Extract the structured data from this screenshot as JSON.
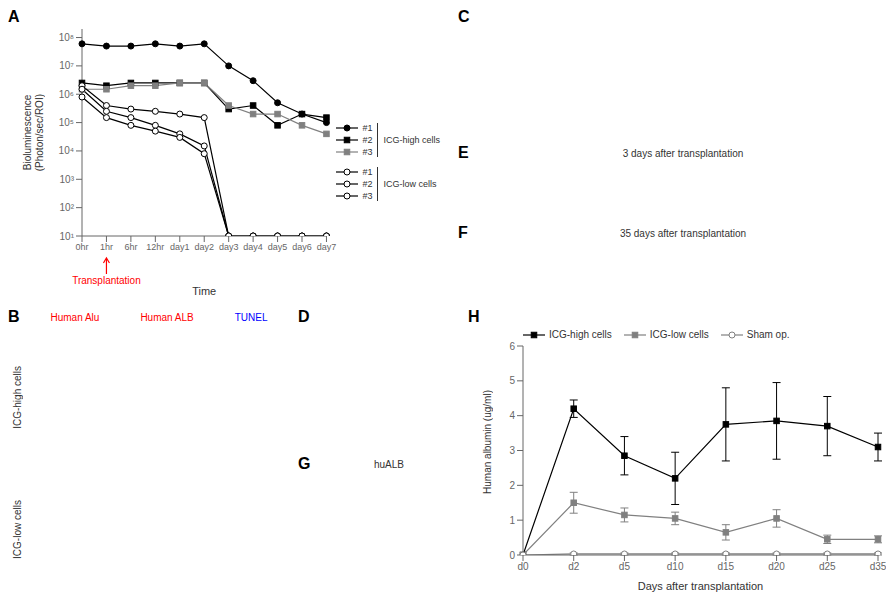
{
  "chart_data": [
    {
      "type": "line",
      "title": "A",
      "xlabel": "Time",
      "ylabel": "Bioluminescence\n(Photon/sec/ROI)",
      "categories": [
        "0hr",
        "1hr",
        "6hr",
        "12hr",
        "day1",
        "day2",
        "day3",
        "day4",
        "day5",
        "day6",
        "day7"
      ],
      "log": "y",
      "ylim": [
        10,
        200000000
      ],
      "yticks": [
        {
          "value": 10,
          "label": "10¹"
        },
        {
          "value": 100,
          "label": "10²"
        },
        {
          "value": 1000,
          "label": "10³"
        },
        {
          "value": 10000,
          "label": "10⁴"
        },
        {
          "value": 100000,
          "label": "10⁵"
        },
        {
          "value": 1000000,
          "label": "10⁶"
        },
        {
          "value": 10000000,
          "label": "10⁷"
        },
        {
          "value": 100000000,
          "label": "10⁸"
        }
      ],
      "grid": false,
      "legend": "right",
      "series": [
        {
          "name": "#1",
          "color": "black",
          "marker": "circle",
          "values": [
            60000000,
            50000000,
            50000000,
            60000000,
            50000000,
            60000000,
            10000000,
            3000000,
            500000,
            200000,
            100000
          ]
        },
        {
          "name": "#2",
          "color": "black",
          "marker": "square",
          "values": [
            2500000,
            2000000,
            2500000,
            2500000,
            2500000,
            2500000,
            300000,
            400000,
            80000,
            200000,
            150000
          ]
        },
        {
          "name": "#3",
          "color": "gray",
          "marker": "square",
          "values": [
            1500000,
            1500000,
            2000000,
            2000000,
            2500000,
            2500000,
            400000,
            200000,
            200000,
            80000,
            40000
          ]
        },
        {
          "name": "#1",
          "color": "black",
          "marker": "open_circle",
          "values": [
            2000000,
            400000,
            300000,
            250000,
            200000,
            150000,
            10,
            10,
            10,
            10,
            10
          ]
        },
        {
          "name": "#2",
          "color": "black",
          "marker": "open_circle",
          "values": [
            1500000,
            250000,
            150000,
            80000,
            40000,
            15000,
            10,
            10,
            10,
            10,
            10
          ]
        },
        {
          "name": "#3",
          "color": "black",
          "marker": "open_circle",
          "values": [
            800000,
            150000,
            80000,
            50000,
            30000,
            8000,
            10,
            10,
            10,
            10,
            10
          ]
        }
      ],
      "annotations": [
        {
          "text": "ICG-high cells"
        },
        {
          "text": "ICG-low cells"
        },
        {
          "text": "Transplantation",
          "x": "1hr",
          "color": "red"
        }
      ]
    },
    {
      "type": "image",
      "title": "B",
      "annotations": [
        {
          "text": "Human Alu",
          "color": "red"
        },
        {
          "text": "Human ALB",
          "color": "red"
        },
        {
          "text": "TUNEL",
          "color": "blue"
        },
        {
          "text": "ICG-high cells"
        },
        {
          "text": "ICG-low cells"
        }
      ]
    },
    {
      "type": "image",
      "title": "C"
    },
    {
      "type": "image",
      "title": "D"
    },
    {
      "type": "image",
      "title": "E",
      "annotations": [
        {
          "text": "3 days after transplantation"
        }
      ]
    },
    {
      "type": "image",
      "title": "F",
      "annotations": [
        {
          "text": "35 days after transplantation"
        }
      ]
    },
    {
      "type": "image",
      "title": "G",
      "annotations": [
        {
          "text": "huALB"
        }
      ]
    },
    {
      "type": "line",
      "title": "H",
      "xlabel": "Days after transplantation",
      "ylabel": "Human albumin (ug/ml)",
      "categories": [
        "d0",
        "d2",
        "d5",
        "d10",
        "d15",
        "d20",
        "d25",
        "d35"
      ],
      "ylim": [
        0,
        6
      ],
      "yticks": [
        0,
        1,
        2,
        3,
        4,
        5,
        6
      ],
      "grid": false,
      "legend": "upper left",
      "series": [
        {
          "name": "ICG-high cells",
          "color": "black",
          "marker": "square",
          "values": [
            0,
            4.2,
            2.85,
            2.2,
            3.75,
            3.85,
            3.7,
            3.1
          ],
          "errors": [
            0,
            0.25,
            0.55,
            0.75,
            1.05,
            1.1,
            0.85,
            0.4
          ]
        },
        {
          "name": "ICG-low cells",
          "color": "gray",
          "marker": "square",
          "values": [
            0,
            1.5,
            1.15,
            1.05,
            0.65,
            1.05,
            0.45,
            0.45
          ],
          "errors": [
            0,
            0.3,
            0.2,
            0.18,
            0.22,
            0.25,
            0.12,
            0.1
          ]
        },
        {
          "name": "Sham op.",
          "color": "gray",
          "marker": "open_circle",
          "values": [
            0,
            0.03,
            0.03,
            0.03,
            0.03,
            0.03,
            0.03,
            0.03
          ],
          "errors": [
            0,
            0.03,
            0.03,
            0.03,
            0.03,
            0.03,
            0.03,
            0.03
          ]
        }
      ]
    }
  ]
}
